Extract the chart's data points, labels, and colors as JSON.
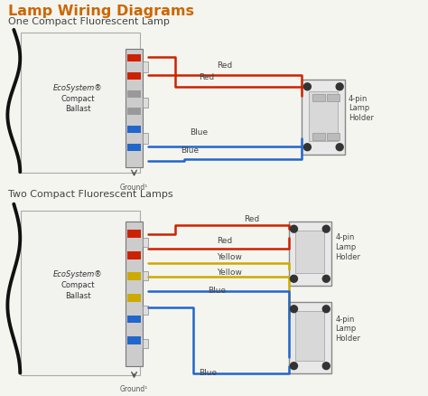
{
  "title": "Lamp Wiring Diagrams",
  "bg_color": "#f5f5f0",
  "title_color": "#cc6600",
  "title_fontsize": 11.5,
  "subtitle1": "One Compact Fluorescent Lamp",
  "subtitle2": "Two Compact Fluorescent Lamps",
  "subtitle_fontsize": 8,
  "text_color": "#444444",
  "red_color": "#cc2200",
  "blue_color": "#2266cc",
  "yellow_color": "#ccaa00",
  "black_color": "#111111",
  "label_fontsize": 6.5,
  "wire_lw": 1.8
}
